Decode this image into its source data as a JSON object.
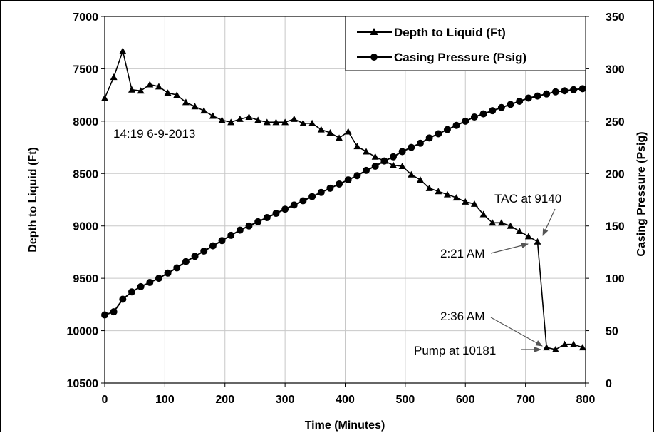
{
  "chart_data": {
    "type": "line",
    "xlabel": "Time (Minutes)",
    "ylabel_left": "Depth to Liquid (Ft)",
    "ylabel_right": "Casing Pressure  (Psig)",
    "xlim": [
      0,
      800
    ],
    "xticks": [
      0,
      100,
      200,
      300,
      400,
      500,
      600,
      700,
      800
    ],
    "ylim_left": [
      7000,
      10500
    ],
    "yticks_left": [
      7000,
      7500,
      8000,
      8500,
      9000,
      9500,
      10000,
      10500
    ],
    "ylim_right": [
      0,
      350
    ],
    "yticks_right": [
      0,
      50,
      100,
      150,
      200,
      250,
      300,
      350
    ],
    "left_axis_inverted": true,
    "grid": true,
    "legend_position": "top-right",
    "series": [
      {
        "name": "Depth to Liquid (Ft)",
        "axis": "left",
        "marker": "triangle",
        "color": "#000000",
        "x": [
          0,
          15,
          30,
          45,
          60,
          75,
          90,
          105,
          120,
          135,
          150,
          165,
          180,
          195,
          210,
          225,
          240,
          255,
          270,
          285,
          300,
          315,
          330,
          345,
          360,
          375,
          390,
          405,
          420,
          435,
          450,
          465,
          480,
          495,
          510,
          525,
          540,
          555,
          570,
          585,
          600,
          615,
          630,
          645,
          660,
          675,
          690,
          705,
          720,
          735,
          750,
          765,
          780,
          795
        ],
        "values": [
          7780,
          7580,
          7330,
          7700,
          7710,
          7650,
          7670,
          7730,
          7750,
          7820,
          7860,
          7900,
          7950,
          7990,
          8010,
          7980,
          7960,
          7990,
          8010,
          8010,
          8010,
          7980,
          8020,
          8020,
          8080,
          8110,
          8160,
          8100,
          8240,
          8290,
          8340,
          8380,
          8420,
          8430,
          8510,
          8560,
          8640,
          8670,
          8700,
          8730,
          8770,
          8790,
          8890,
          8970,
          8970,
          9000,
          9050,
          9100,
          9150,
          10160,
          10180,
          10130,
          10130,
          10160
        ]
      },
      {
        "name": "Casing Pressure (Psig)",
        "axis": "right",
        "marker": "circle",
        "color": "#000000",
        "x": [
          0,
          15,
          30,
          45,
          60,
          75,
          90,
          105,
          120,
          135,
          150,
          165,
          180,
          195,
          210,
          225,
          240,
          255,
          270,
          285,
          300,
          315,
          330,
          345,
          360,
          375,
          390,
          405,
          420,
          435,
          450,
          465,
          480,
          495,
          510,
          525,
          540,
          555,
          570,
          585,
          600,
          615,
          630,
          645,
          660,
          675,
          690,
          705,
          720,
          735,
          750,
          765,
          780,
          795
        ],
        "values": [
          65,
          68,
          80,
          87,
          92,
          96,
          100,
          105,
          110,
          116,
          121,
          126,
          131,
          136,
          141,
          146,
          150,
          154,
          158,
          162,
          166,
          170,
          174,
          178,
          182,
          186,
          190,
          194,
          198,
          203,
          207,
          212,
          216,
          221,
          225,
          229,
          234,
          238,
          242,
          246,
          250,
          254,
          257,
          260,
          263,
          266,
          269,
          272,
          274,
          276,
          278,
          279,
          280,
          281
        ]
      }
    ],
    "annotations": [
      {
        "text": "14:19 6-9-2013"
      },
      {
        "text": "TAC at 9140",
        "arrow_to": [
          725,
          9140
        ]
      },
      {
        "text": "2:21 AM",
        "arrow_to": [
          715,
          9140
        ]
      },
      {
        "text": "2:36 AM",
        "arrow_to": [
          735,
          10160
        ]
      },
      {
        "text": "Pump at 10181",
        "arrow_to": [
          733,
          10181
        ]
      }
    ]
  }
}
